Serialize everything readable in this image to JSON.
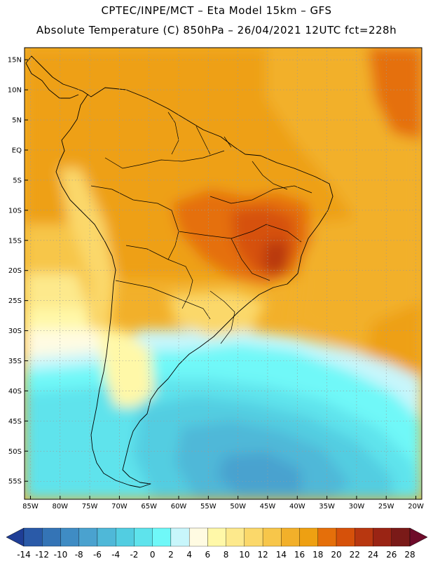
{
  "header": {
    "line1": "CPTEC/INPE/MCT –   Eta Model 15km – GFS",
    "line2": "Absolute Temperature (C) 850hPa – 26/04/2021 12UTC fct=228h"
  },
  "map": {
    "lon_range": [
      -86,
      -19
    ],
    "lat_range": [
      -58,
      17
    ],
    "lat_ticks": [
      {
        "value": 15,
        "label": "15N"
      },
      {
        "value": 10,
        "label": "10N"
      },
      {
        "value": 5,
        "label": "5N"
      },
      {
        "value": 0,
        "label": "EQ"
      },
      {
        "value": -5,
        "label": "5S"
      },
      {
        "value": -10,
        "label": "10S"
      },
      {
        "value": -15,
        "label": "15S"
      },
      {
        "value": -20,
        "label": "20S"
      },
      {
        "value": -25,
        "label": "25S"
      },
      {
        "value": -30,
        "label": "30S"
      },
      {
        "value": -35,
        "label": "35S"
      },
      {
        "value": -40,
        "label": "40S"
      },
      {
        "value": -45,
        "label": "45S"
      },
      {
        "value": -50,
        "label": "50S"
      },
      {
        "value": -55,
        "label": "55S"
      }
    ],
    "lon_ticks": [
      {
        "value": -85,
        "label": "85W"
      },
      {
        "value": -80,
        "label": "80W"
      },
      {
        "value": -75,
        "label": "75W"
      },
      {
        "value": -70,
        "label": "70W"
      },
      {
        "value": -65,
        "label": "65W"
      },
      {
        "value": -60,
        "label": "60W"
      },
      {
        "value": -55,
        "label": "55W"
      },
      {
        "value": -50,
        "label": "50W"
      },
      {
        "value": -45,
        "label": "45W"
      },
      {
        "value": -40,
        "label": "40W"
      },
      {
        "value": -35,
        "label": "35W"
      },
      {
        "value": -30,
        "label": "30W"
      },
      {
        "value": -25,
        "label": "25W"
      },
      {
        "value": -20,
        "label": "20W"
      }
    ]
  },
  "colorbar": {
    "levels": [
      "-14",
      "-12",
      "-10",
      "-8",
      "-6",
      "-4",
      "-2",
      "0",
      "2",
      "4",
      "6",
      "8",
      "10",
      "12",
      "14",
      "16",
      "18",
      "20",
      "22",
      "24",
      "26",
      "28"
    ],
    "colors": [
      "#1f3e96",
      "#2a5aa8",
      "#3474b6",
      "#3f8cc4",
      "#4aa2cf",
      "#4fb8d8",
      "#52cde1",
      "#5ee3ec",
      "#6ff8f8",
      "#c8f6fb",
      "#fffbe2",
      "#fff8a8",
      "#fde98c",
      "#fbd86a",
      "#f7c64a",
      "#f2b02a",
      "#eea012",
      "#e56f0a",
      "#d6510a",
      "#b83710",
      "#9a2414",
      "#7a1a18",
      "#6e0b2a"
    ]
  }
}
